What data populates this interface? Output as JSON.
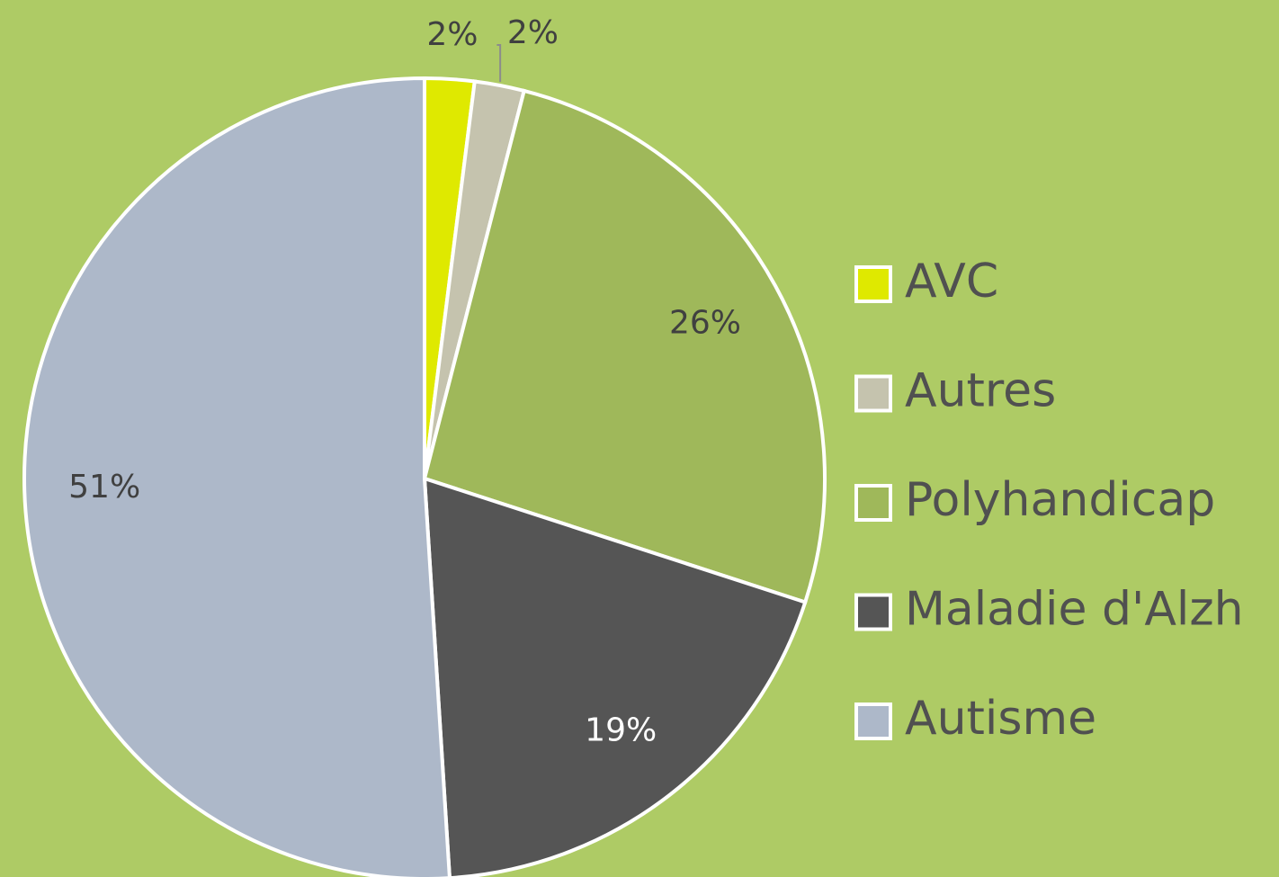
{
  "chart_data": {
    "type": "pie",
    "categories": [
      "AVC",
      "Autres",
      "Polyhandicap",
      "Maladie d'Alzh",
      "Autisme"
    ],
    "values": [
      2,
      2,
      26,
      19,
      51
    ],
    "value_labels": [
      "2%",
      "2%",
      "26%",
      "19%",
      "51%"
    ],
    "colors": [
      "#dfe900",
      "#c5c3ae",
      "#9fb85a",
      "#555555",
      "#adb8c9"
    ],
    "legend": "right"
  }
}
